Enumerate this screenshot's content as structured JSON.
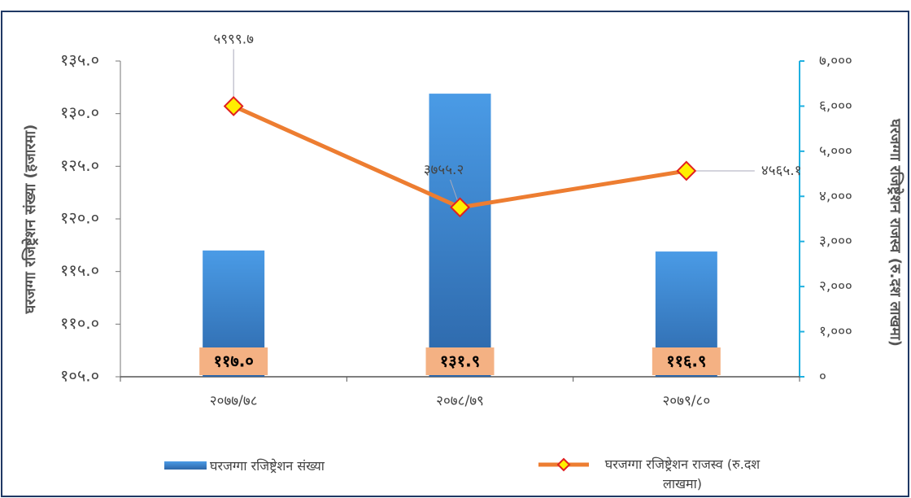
{
  "chart_data": {
    "type": "bar",
    "categories": [
      "२०७७/७८",
      "२०७८/७९",
      "२०७९/८०"
    ],
    "y_label": "घरजग्गा रजिष्ट्रेशन संख्या (हजारमा)",
    "y2_label": "घरजग्गा रजिष्ट्रेशन राजस्व (रु.दश लाखमा)",
    "series": [
      {
        "name": "घरजग्गा रजिष्ट्रेशन संख्या",
        "type": "bar",
        "color": "#3d8ad8",
        "axis": "y",
        "values": [
          117.0,
          131.9,
          116.9
        ],
        "value_labels": [
          "११७.०",
          "१३१.९",
          "११६.९"
        ]
      },
      {
        "name": "घरजग्गा रजिष्ट्रेशन राजस्व (रु.दश लाखमा)",
        "type": "line",
        "color": "#ed7d31",
        "axis": "y2",
        "values": [
          5999.7,
          3755.2,
          4565.1
        ],
        "value_labels": [
          "५९९९.७",
          "३७५५.२",
          "४५६५.१"
        ]
      }
    ],
    "ylim": [
      105,
      135
    ],
    "yticks": [
      {
        "value": 105,
        "label": "१०५.०"
      },
      {
        "value": 110,
        "label": "११०.०"
      },
      {
        "value": 115,
        "label": "११५.०"
      },
      {
        "value": 120,
        "label": "१२०.०"
      },
      {
        "value": 125,
        "label": "१२५.०"
      },
      {
        "value": 130,
        "label": "१३०.०"
      },
      {
        "value": 135,
        "label": "१३५.०"
      }
    ],
    "y2lim": [
      0,
      7000
    ],
    "y2ticks": [
      {
        "value": 0,
        "label": "०"
      },
      {
        "value": 1000,
        "label": "१,०००"
      },
      {
        "value": 2000,
        "label": "२,०००"
      },
      {
        "value": 3000,
        "label": "३,०००"
      },
      {
        "value": 4000,
        "label": "४,०००"
      },
      {
        "value": 5000,
        "label": "५,०००"
      },
      {
        "value": 6000,
        "label": "६,०००"
      },
      {
        "value": 7000,
        "label": "७,०००"
      }
    ],
    "legend": "bottom"
  }
}
